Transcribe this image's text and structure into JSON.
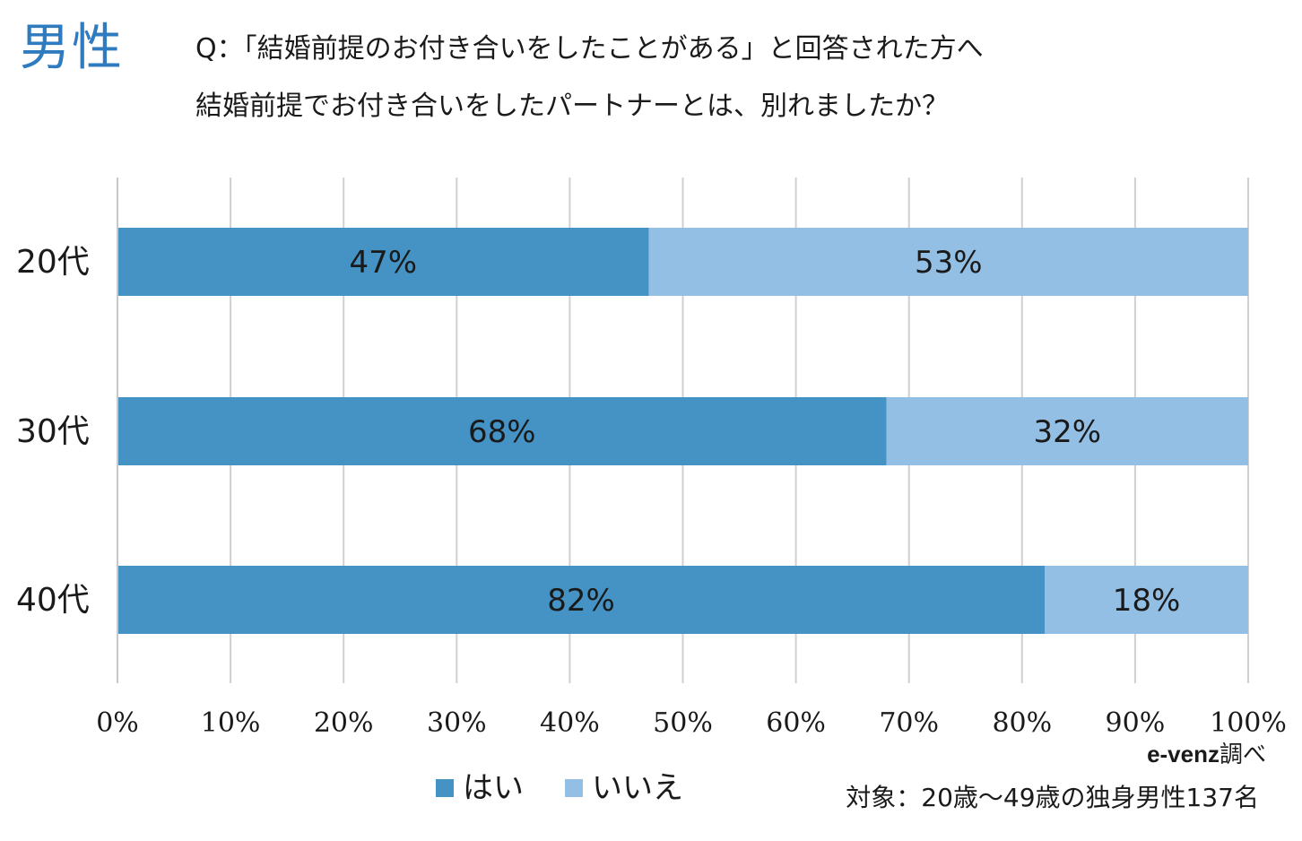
{
  "header": {
    "gender": "男性",
    "question_line1": "Q：「結婚前提のお付き合いをしたことがある」と回答された方へ",
    "question_line2": "結婚前提でお付き合いをしたパートナーとは、別れましたか？"
  },
  "chart_data": {
    "type": "bar",
    "orientation": "horizontal",
    "stacked": true,
    "categories": [
      "20代",
      "30代",
      "40代"
    ],
    "series": [
      {
        "name": "はい",
        "values": [
          47,
          68,
          82
        ],
        "labels": [
          "47%",
          "68%",
          "82%"
        ],
        "color": "#4593c4"
      },
      {
        "name": "いいえ",
        "values": [
          53,
          32,
          18
        ],
        "labels": [
          "53%",
          "32%",
          "18%"
        ],
        "color": "#93bfe4"
      }
    ],
    "xlim": [
      0,
      100
    ],
    "x_ticks": [
      "0%",
      "10%",
      "20%",
      "30%",
      "40%",
      "50%",
      "60%",
      "70%",
      "80%",
      "90%",
      "100%"
    ],
    "grid": true,
    "legend_position": "bottom"
  },
  "source": {
    "brand": "e-venz",
    "suffix": "調べ"
  },
  "target_note": "対象：20歳〜49歳の独身男性137名"
}
